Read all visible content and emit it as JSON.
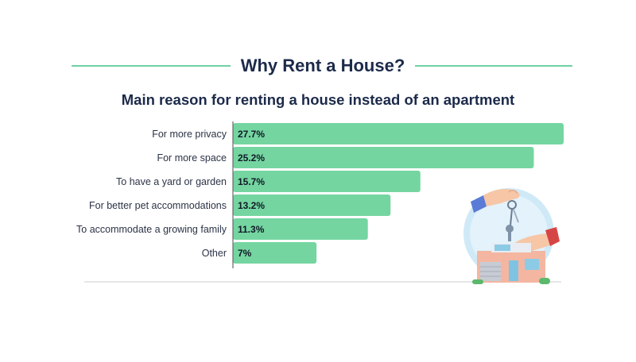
{
  "header": {
    "title": "Why Rent a House?",
    "subtitle": "Main reason for renting a house instead of an apartment"
  },
  "colors": {
    "bar": "#74d5a0",
    "title_line": "#6fd1a3",
    "text": "#1c2a4a",
    "axis": "#666666"
  },
  "illustration": {
    "icon": "hand-with-house-keys-icon"
  },
  "chart_data": {
    "type": "bar",
    "orientation": "horizontal",
    "title": "Main reason for renting a house instead of an apartment",
    "categories": [
      "For more privacy",
      "For more space",
      "To have a yard or garden",
      "For better pet accommodations",
      "To accommodate a growing family",
      "Other"
    ],
    "values": [
      27.7,
      25.2,
      15.7,
      13.2,
      11.3,
      7
    ],
    "value_labels": [
      "27.7%",
      "25.2%",
      "15.7%",
      "13.2%",
      "11.3%",
      "7%"
    ],
    "xlim": [
      0,
      27.7
    ],
    "grid": false,
    "legend": "none"
  }
}
